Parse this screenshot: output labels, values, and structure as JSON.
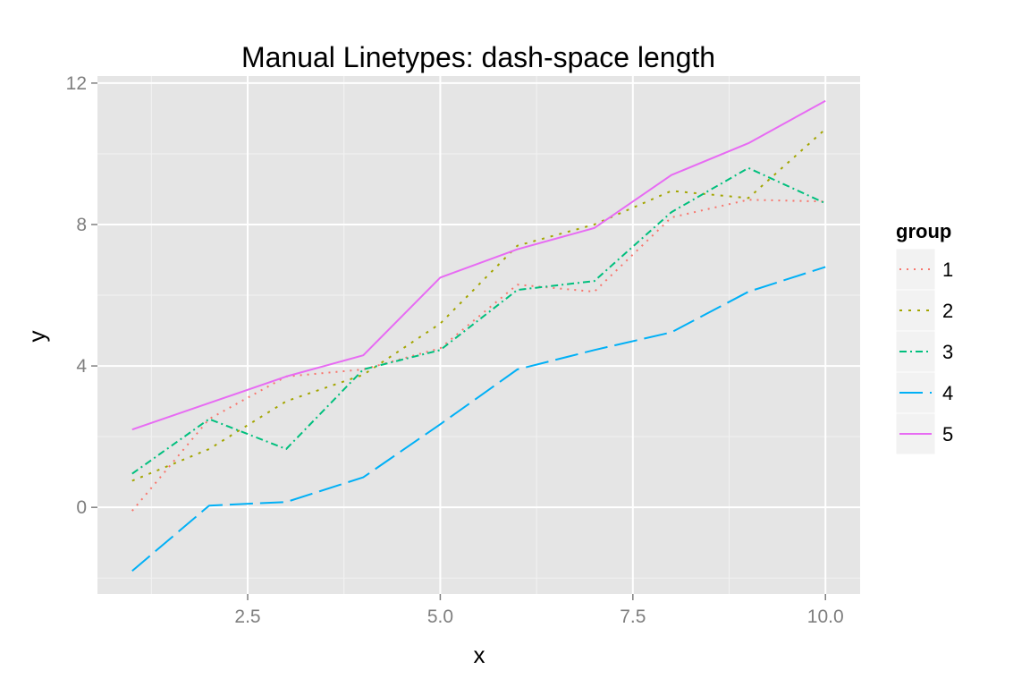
{
  "chart_data": {
    "type": "line",
    "title": "Manual Linetypes: dash-space length",
    "xlabel": "x",
    "ylabel": "y",
    "xlim": [
      0.55,
      10.45
    ],
    "ylim": [
      -2.45,
      12.2
    ],
    "x_ticks": [
      2.5,
      5.0,
      7.5,
      10.0
    ],
    "x_tick_labels": [
      "2.5",
      "5.0",
      "7.5",
      "10.0"
    ],
    "y_ticks": [
      0,
      4,
      8,
      12
    ],
    "y_tick_labels": [
      "0",
      "4",
      "8",
      "12"
    ],
    "grid": true,
    "legend": {
      "title": "group",
      "position": "right"
    },
    "series": [
      {
        "name": "1",
        "color": "#F8766D",
        "dash": "2,6",
        "x": [
          1,
          2,
          3,
          4,
          5,
          6,
          7,
          8,
          9,
          10
        ],
        "y": [
          -0.1,
          2.5,
          3.7,
          3.9,
          4.5,
          6.3,
          6.1,
          8.2,
          8.7,
          8.65
        ]
      },
      {
        "name": "2",
        "color": "#A3A500",
        "dash": "3,7",
        "x": [
          1,
          2,
          3,
          4,
          5,
          6,
          7,
          8,
          9,
          10
        ],
        "y": [
          0.75,
          1.65,
          3.0,
          3.75,
          5.2,
          7.4,
          8.0,
          8.95,
          8.75,
          10.7
        ]
      },
      {
        "name": "3",
        "color": "#00BF7D",
        "dash": "8,4,2,4",
        "x": [
          1,
          2,
          3,
          4,
          5,
          6,
          7,
          8,
          9,
          10
        ],
        "y": [
          0.95,
          2.5,
          1.65,
          3.9,
          4.45,
          6.15,
          6.4,
          8.35,
          9.6,
          8.6
        ]
      },
      {
        "name": "4",
        "color": "#00B0F6",
        "dash": "26,8",
        "x": [
          1,
          2,
          3,
          4,
          5,
          6,
          7,
          8,
          9,
          10
        ],
        "y": [
          -1.8,
          0.05,
          0.15,
          0.85,
          2.35,
          3.9,
          4.45,
          4.95,
          6.1,
          6.8
        ]
      },
      {
        "name": "5",
        "color": "#E76BF3",
        "dash": "",
        "x": [
          1,
          2,
          3,
          4,
          5,
          6,
          7,
          8,
          9,
          10
        ],
        "y": [
          2.2,
          2.95,
          3.7,
          4.3,
          6.5,
          7.3,
          7.9,
          9.4,
          10.3,
          11.5
        ]
      }
    ]
  }
}
